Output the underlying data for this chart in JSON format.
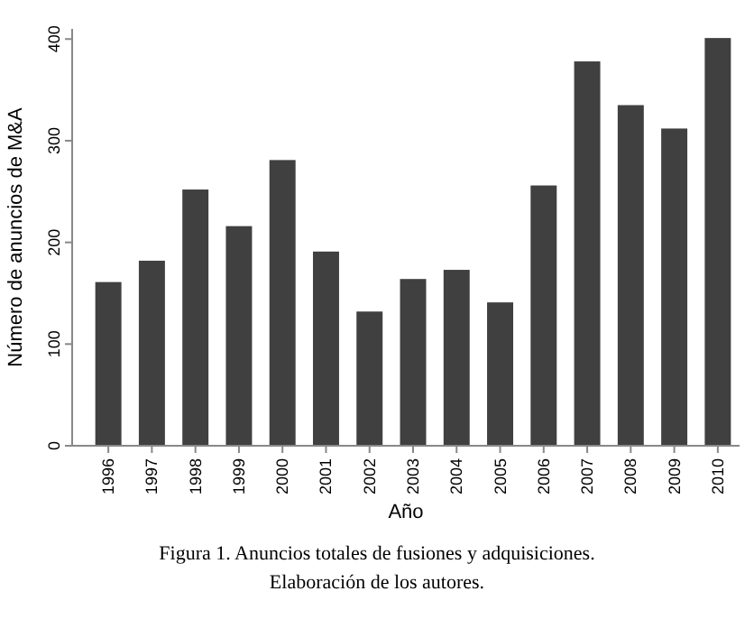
{
  "chart_data": {
    "type": "bar",
    "xlabel": "Año",
    "ylabel": "Número de anuncios de M&A",
    "categories": [
      "1996",
      "1997",
      "1998",
      "1999",
      "2000",
      "2001",
      "2002",
      "2003",
      "2004",
      "2005",
      "2006",
      "2007",
      "2008",
      "2009",
      "2010"
    ],
    "values": [
      161,
      182,
      252,
      216,
      281,
      191,
      132,
      164,
      173,
      141,
      256,
      378,
      335,
      312,
      401
    ],
    "color": "#404040",
    "ylim": [
      0,
      410
    ],
    "yticks": [
      0,
      100,
      200,
      300,
      400
    ],
    "grid": false,
    "annotations": [
      "Figura 1.  Anuncios totales de fusiones y adquisiciones.",
      "Elaboración de los autores."
    ]
  }
}
